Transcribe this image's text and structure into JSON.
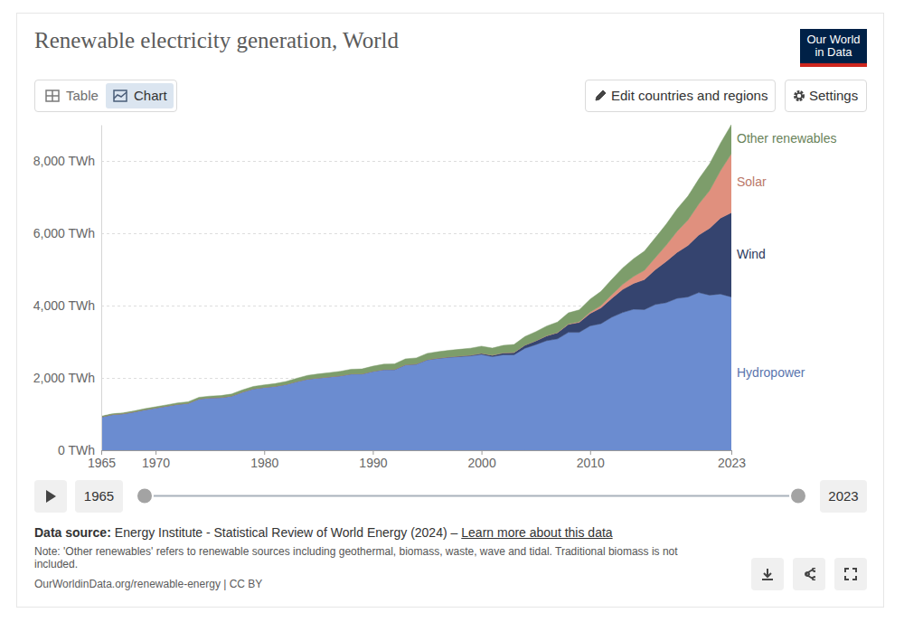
{
  "page": {
    "logo": [
      "Our World",
      "in Data"
    ],
    "tabs": [
      "Table",
      "Chart"
    ],
    "buttons": [
      "Edit countries and regions",
      "Settings"
    ],
    "timeline": {
      "start": "1965",
      "end": "2023"
    },
    "source_label": "Data source:",
    "source": "Energy Institute - Statistical Review of World Energy (2024) –",
    "source_link": "Learn more about this data",
    "note": "Note: 'Other renewables' refers to renewable sources including geothermal, biomass, waste, wave and tidal. Traditional biomass is not included.",
    "footer": "OurWorldinData.org/renewable-energy | CC BY"
  },
  "chart_data": {
    "type": "area",
    "stacked": true,
    "title": "Renewable electricity generation, World",
    "x": [
      1965,
      1966,
      1967,
      1968,
      1969,
      1970,
      1971,
      1972,
      1973,
      1974,
      1975,
      1976,
      1977,
      1978,
      1979,
      1980,
      1981,
      1982,
      1983,
      1984,
      1985,
      1986,
      1987,
      1988,
      1989,
      1990,
      1991,
      1992,
      1993,
      1994,
      1995,
      1996,
      1997,
      1998,
      1999,
      2000,
      2001,
      2002,
      2003,
      2004,
      2005,
      2006,
      2007,
      2008,
      2009,
      2010,
      2011,
      2012,
      2013,
      2014,
      2015,
      2016,
      2017,
      2018,
      2019,
      2020,
      2021,
      2022,
      2023
    ],
    "xlim": [
      1965,
      2023
    ],
    "xticks": [
      1965,
      1970,
      1980,
      1990,
      2000,
      2010,
      2023
    ],
    "ylim": [
      0,
      9000
    ],
    "yticks": [
      {
        "value": 0,
        "label": "0 TWh"
      },
      {
        "value": 2000,
        "label": "2,000 TWh"
      },
      {
        "value": 4000,
        "label": "4,000 TWh"
      },
      {
        "value": 6000,
        "label": "6,000 TWh"
      },
      {
        "value": 8000,
        "label": "8,000 TWh"
      }
    ],
    "grid": true,
    "series": [
      {
        "name": "Hydropower",
        "color": "#6b8cd0",
        "values": [
          920,
          985,
          1010,
          1060,
          1120,
          1170,
          1220,
          1270,
          1300,
          1420,
          1450,
          1460,
          1500,
          1610,
          1700,
          1740,
          1770,
          1820,
          1900,
          1970,
          2000,
          2030,
          2060,
          2110,
          2110,
          2180,
          2230,
          2230,
          2360,
          2380,
          2500,
          2540,
          2570,
          2590,
          2610,
          2650,
          2590,
          2640,
          2640,
          2820,
          2920,
          3030,
          3080,
          3260,
          3260,
          3440,
          3500,
          3680,
          3810,
          3900,
          3890,
          4030,
          4080,
          4200,
          4240,
          4360,
          4290,
          4320,
          4240
        ]
      },
      {
        "name": "Wind",
        "color": "#35446f",
        "values": [
          0,
          0,
          0,
          0,
          0,
          0,
          0,
          0,
          0,
          0,
          0,
          0,
          0,
          0,
          0,
          0,
          0,
          0,
          0,
          0,
          0,
          0,
          0,
          1,
          2,
          4,
          4,
          5,
          6,
          7,
          8,
          9,
          12,
          16,
          21,
          31,
          38,
          52,
          63,
          85,
          104,
          133,
          171,
          220,
          276,
          342,
          437,
          523,
          637,
          712,
          831,
          962,
          1140,
          1270,
          1420,
          1590,
          1850,
          2100,
          2330
        ]
      },
      {
        "name": "Solar",
        "color": "#e0907e",
        "values": [
          0,
          0,
          0,
          0,
          0,
          0,
          0,
          0,
          0,
          0,
          0,
          0,
          0,
          0,
          0,
          0,
          0,
          0,
          0,
          0,
          0,
          0,
          0,
          0,
          0,
          0,
          0,
          0,
          0,
          0,
          0,
          0,
          0,
          0,
          0,
          1,
          1,
          2,
          2,
          3,
          4,
          6,
          8,
          12,
          21,
          34,
          65,
          100,
          138,
          193,
          253,
          333,
          447,
          581,
          703,
          857,
          1040,
          1310,
          1630
        ]
      },
      {
        "name": "Other renewables",
        "color": "#7d9d6b",
        "values": [
          20,
          22,
          23,
          25,
          28,
          30,
          33,
          36,
          40,
          43,
          46,
          50,
          55,
          60,
          63,
          67,
          72,
          80,
          90,
          100,
          110,
          115,
          122,
          128,
          135,
          140,
          145,
          152,
          160,
          165,
          170,
          175,
          180,
          185,
          190,
          195,
          195,
          205,
          220,
          235,
          250,
          265,
          285,
          305,
          325,
          360,
          390,
          420,
          455,
          490,
          530,
          550,
          580,
          620,
          660,
          690,
          740,
          760,
          800
        ]
      }
    ]
  }
}
